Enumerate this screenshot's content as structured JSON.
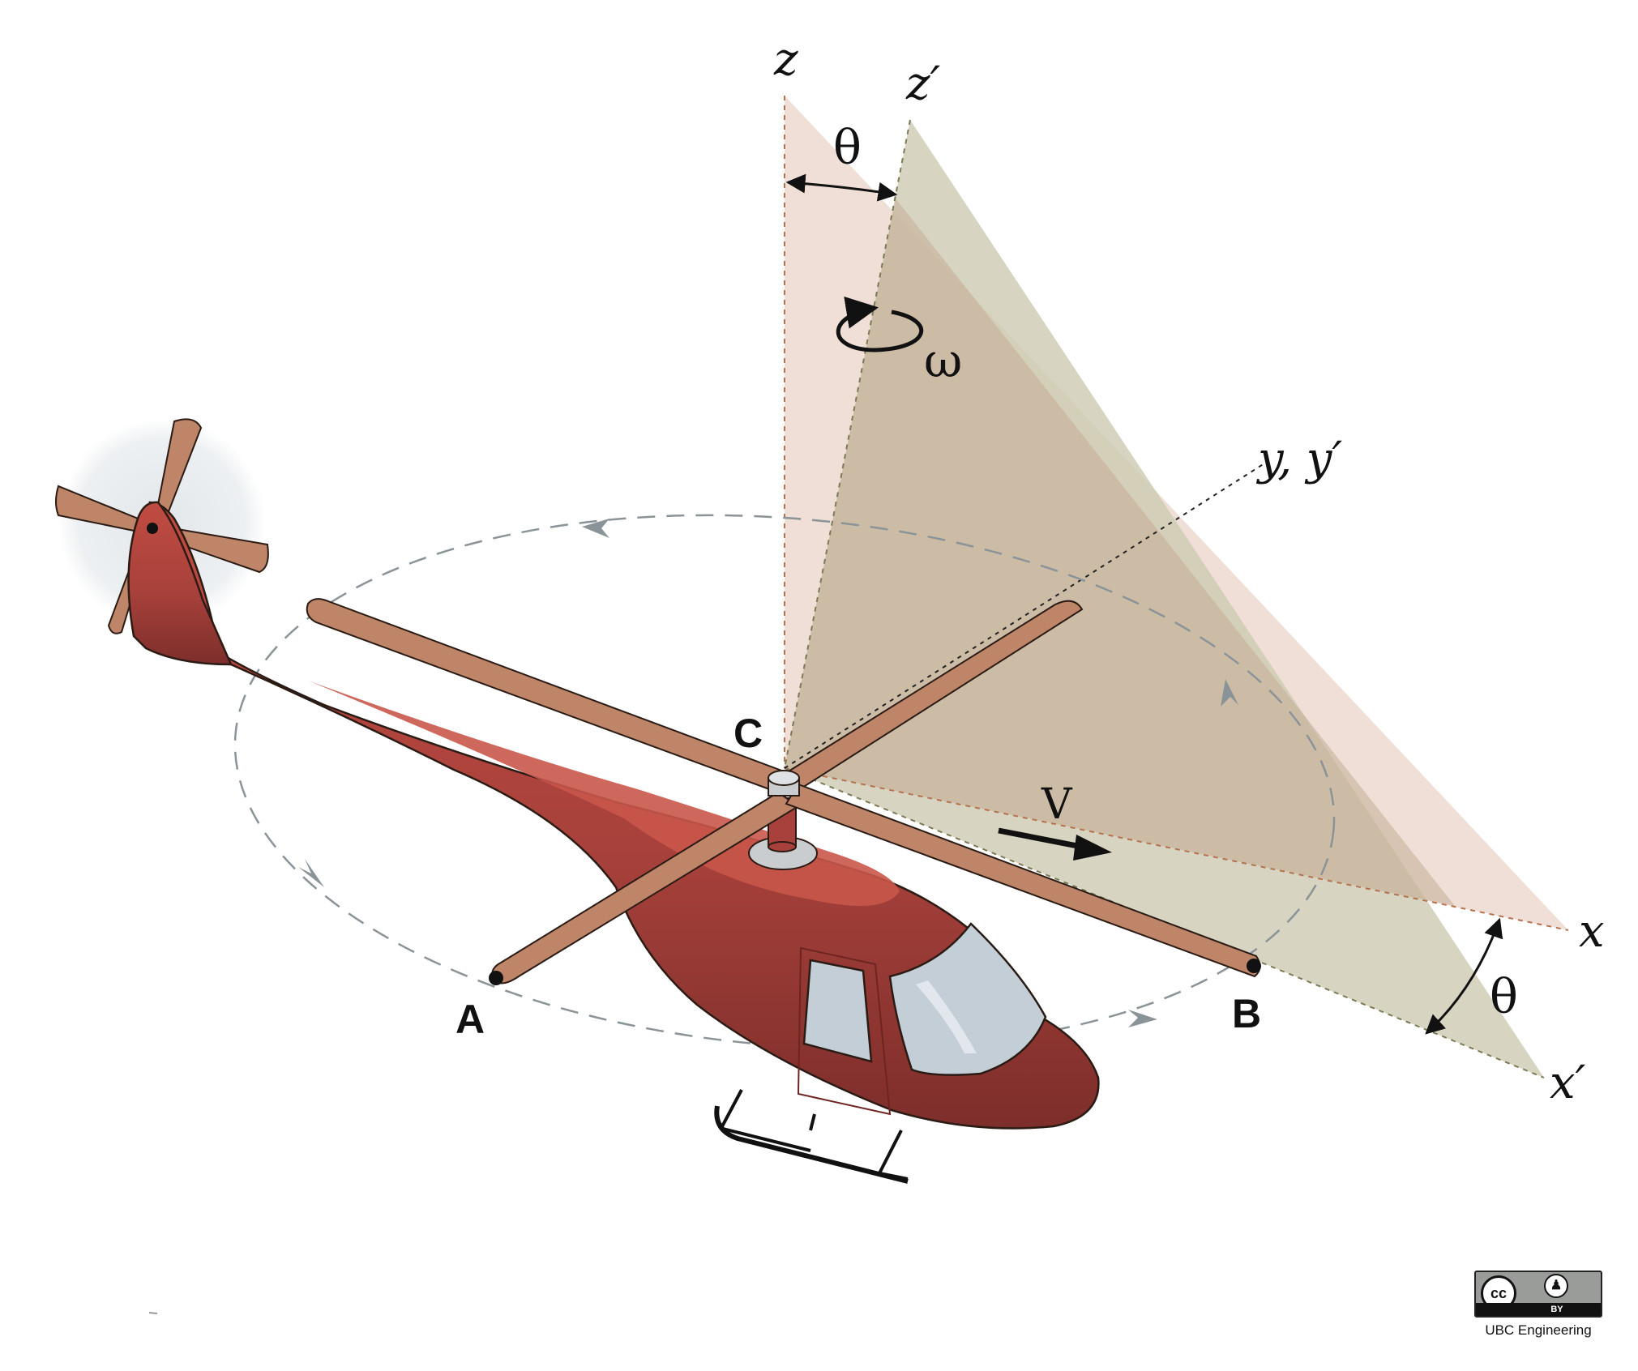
{
  "diagram": {
    "axes": {
      "z": "z",
      "z_prime": "z′",
      "y_yprime": "y, y′",
      "x": "x",
      "x_prime": "x′"
    },
    "angles": {
      "theta_top": "θ",
      "theta_right": "θ",
      "omega": "ω"
    },
    "points": {
      "A": "A",
      "B": "B",
      "C": "C"
    },
    "velocity": "V",
    "colors": {
      "fuselage": "#a8413b",
      "fuselage_highlight": "#c9574a",
      "blade": "#bf8569",
      "plane_xz": "#ecd9cf",
      "plane_xz_prime": "#cfcdb4",
      "orbit": "#8a9398",
      "window": "#c3ced6"
    }
  },
  "license": {
    "badge_left": "cc",
    "badge_right": "BY",
    "caption": "UBC Engineering"
  }
}
